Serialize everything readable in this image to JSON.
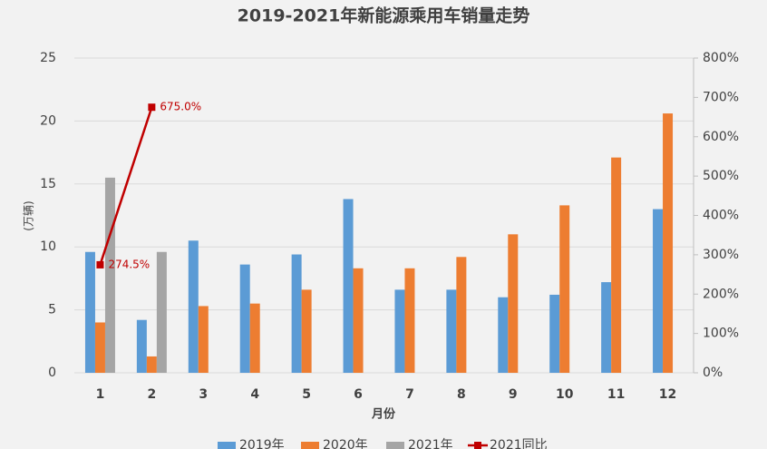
{
  "chart_data": {
    "type": "bar",
    "title": "2019-2021年新能源乘用车销量走势",
    "y_label": "(万辆)",
    "x_label": "月份",
    "categories": [
      "1",
      "2",
      "3",
      "4",
      "5",
      "6",
      "7",
      "8",
      "9",
      "10",
      "11",
      "12"
    ],
    "series": [
      {
        "name": "2019年",
        "color": "#5b9bd5",
        "values": [
          9.6,
          4.2,
          10.5,
          8.6,
          9.4,
          13.8,
          6.6,
          6.6,
          6.0,
          6.2,
          7.2,
          13.0
        ]
      },
      {
        "name": "2020年",
        "color": "#ed7d31",
        "values": [
          4.0,
          1.3,
          5.3,
          5.5,
          6.6,
          8.3,
          8.3,
          9.2,
          11.0,
          13.3,
          17.1,
          20.6
        ]
      },
      {
        "name": "2021年",
        "color": "#a5a5a5",
        "values": [
          15.5,
          9.6,
          null,
          null,
          null,
          null,
          null,
          null,
          null,
          null,
          null,
          null
        ]
      },
      {
        "name": "2021同比",
        "color": "#c00000",
        "type": "line",
        "axis": "y2",
        "values": [
          274.5,
          675.0,
          null,
          null,
          null,
          null,
          null,
          null,
          null,
          null,
          null,
          null
        ],
        "value_labels": [
          "274.5%",
          "675.0%",
          null,
          null,
          null,
          null,
          null,
          null,
          null,
          null,
          null,
          null
        ]
      }
    ],
    "ylim": [
      0,
      25
    ],
    "yticks": [
      0,
      5,
      10,
      15,
      20,
      25
    ],
    "y2lim": [
      0,
      800
    ],
    "y2ticks": [
      {
        "value": 0,
        "label": "0%"
      },
      {
        "value": 100,
        "label": "100%"
      },
      {
        "value": 200,
        "label": "200%"
      },
      {
        "value": 300,
        "label": "300%"
      },
      {
        "value": 400,
        "label": "400%"
      },
      {
        "value": 500,
        "label": "500%"
      },
      {
        "value": 600,
        "label": "600%"
      },
      {
        "value": 700,
        "label": "700%"
      },
      {
        "value": 800,
        "label": "800%"
      }
    ],
    "grid": true
  }
}
